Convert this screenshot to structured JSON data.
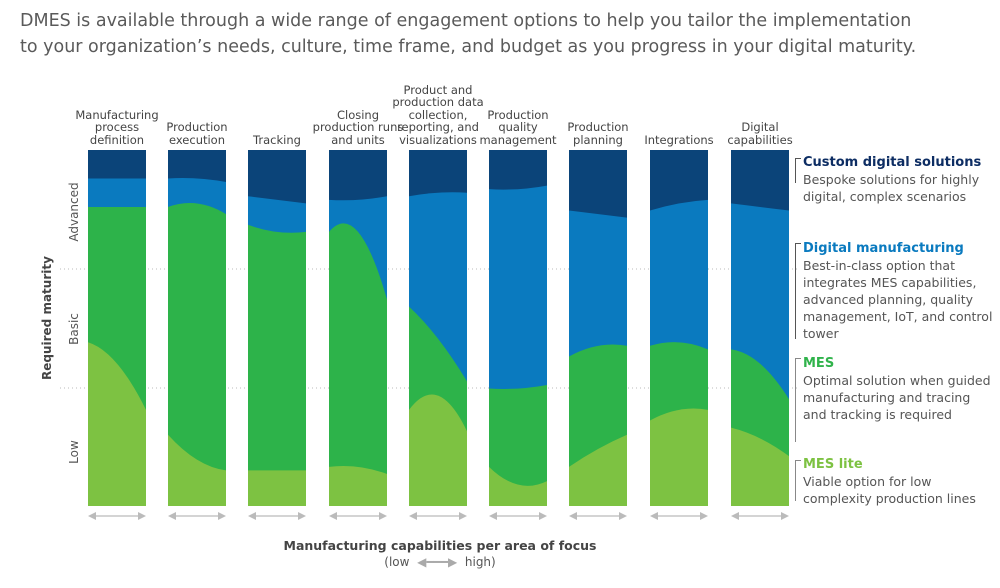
{
  "intro": "DMES is available through a wide range of engagement options to help you tailor the implementation to your organization’s needs, culture, time frame, and budget as you progress in your digital maturity.",
  "chart_data": {
    "type": "area",
    "ylabel": "Required maturity",
    "y_bands": [
      "Advanced",
      "Basic",
      "Low"
    ],
    "xlabel": "Manufacturing capabilities per area of focus",
    "x_scale_low": "(low",
    "x_scale_high": "high)",
    "layers": [
      "MES lite",
      "MES",
      "Digital manufacturing",
      "Custom digital solutions"
    ],
    "colors": {
      "Custom digital solutions": "#0b4479",
      "Digital manufacturing": "#0a7abf",
      "MES": "#2db34a",
      "MES lite": "#7dc242"
    },
    "note": "boundaries are maturity levels 0-100 (bottom to top) sampled at low, mid, high capability",
    "columns": [
      {
        "name": "Manufacturing process definition",
        "lite_top": [
          46,
          40,
          27
        ],
        "mes_top": [
          84,
          84,
          84
        ],
        "dm_top": [
          92,
          92,
          92
        ]
      },
      {
        "name": "Production execution",
        "lite_top": [
          20,
          13,
          10
        ],
        "mes_top": [
          84,
          85,
          82
        ],
        "dm_top": [
          92,
          92,
          91
        ]
      },
      {
        "name": "Tracking",
        "lite_top": [
          10,
          10,
          10
        ],
        "mes_top": [
          79,
          77,
          77
        ],
        "dm_top": [
          87,
          86,
          85
        ]
      },
      {
        "name": "Closing production runs and units",
        "lite_top": [
          11,
          11,
          9
        ],
        "mes_top": [
          77,
          77,
          58
        ],
        "dm_top": [
          86,
          86,
          87
        ]
      },
      {
        "name": "Product and production data collection, reporting, and visualizations",
        "lite_top": [
          27,
          31,
          21
        ],
        "mes_top": [
          56,
          47,
          35
        ],
        "dm_top": [
          87,
          88,
          88
        ]
      },
      {
        "name": "Production quality management",
        "lite_top": [
          11,
          6,
          7
        ],
        "mes_top": [
          33,
          33,
          34
        ],
        "dm_top": [
          89,
          89,
          90
        ]
      },
      {
        "name": "Production planning",
        "lite_top": [
          11,
          16,
          20
        ],
        "mes_top": [
          42,
          45,
          45
        ],
        "dm_top": [
          83,
          82,
          81
        ]
      },
      {
        "name": "Integrations",
        "lite_top": [
          24,
          27,
          27
        ],
        "mes_top": [
          45,
          46,
          44
        ],
        "dm_top": [
          83,
          85,
          86
        ]
      },
      {
        "name": "Digital capabilities",
        "lite_top": [
          22,
          19,
          14
        ],
        "mes_top": [
          44,
          40,
          30
        ],
        "dm_top": [
          85,
          84,
          83
        ]
      }
    ]
  },
  "legend": [
    {
      "title": "Custom digital solutions",
      "desc": "Bespoke solutions for highly digital, complex scenarios",
      "color": "#0d2d63"
    },
    {
      "title": "Digital manufacturing",
      "desc": "Best-in-class option that integrates MES capabilities, advanced planning, quality management, IoT, and control tower",
      "color": "#0a7abf"
    },
    {
      "title": "MES",
      "desc": "Optimal solution when guided manufacturing and tracing and tracking is required",
      "color": "#30b34b"
    },
    {
      "title": "MES lite",
      "desc": "Viable option for low complexity production lines",
      "color": "#7dc242"
    }
  ]
}
